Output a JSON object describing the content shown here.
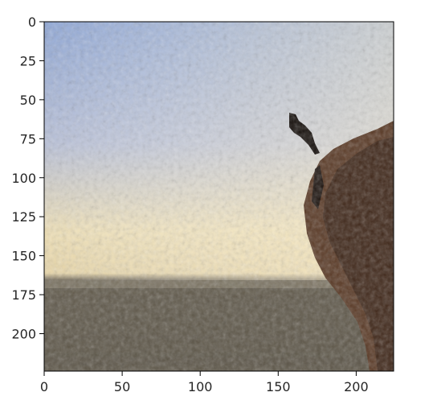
{
  "image": {
    "description_icon": "painting-like-image-icon",
    "dominant_colors": {
      "sky_top": "#9fb3d8",
      "sky_mid": "#c9cbd4",
      "horizon": "#efe2b8",
      "sand": "#e9d9b0",
      "ground": "#6e6556",
      "cliff": "#5a3a26",
      "cliff_dark": "#2a1a12"
    }
  },
  "axes": {
    "x_ticks": [
      "0",
      "50",
      "100",
      "150",
      "200"
    ],
    "y_ticks": [
      "0",
      "25",
      "50",
      "75",
      "100",
      "125",
      "150",
      "175",
      "200"
    ],
    "x_tick_values": [
      0,
      50,
      100,
      150,
      200
    ],
    "y_tick_values": [
      0,
      25,
      50,
      75,
      100,
      125,
      150,
      175,
      200
    ],
    "xlim": [
      0,
      224
    ],
    "ylim": [
      224,
      0
    ]
  }
}
